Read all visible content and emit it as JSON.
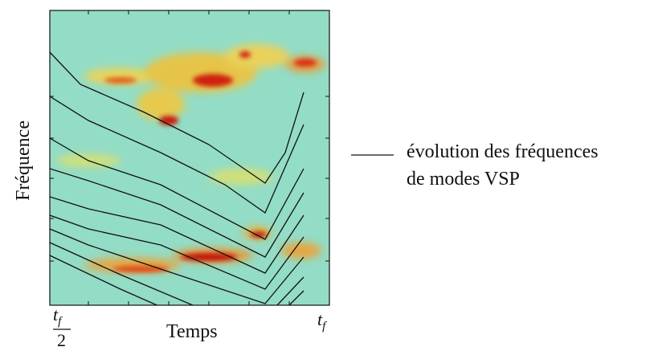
{
  "figure": {
    "y_label": "Fréquence",
    "x_label": "Temps",
    "x_start": {
      "base": "t",
      "sub": "f",
      "denominator": "2"
    },
    "x_end": {
      "base": "t",
      "sub": "f"
    },
    "legend": [
      "évolution des fréquences",
      "de modes VSP"
    ]
  }
}
